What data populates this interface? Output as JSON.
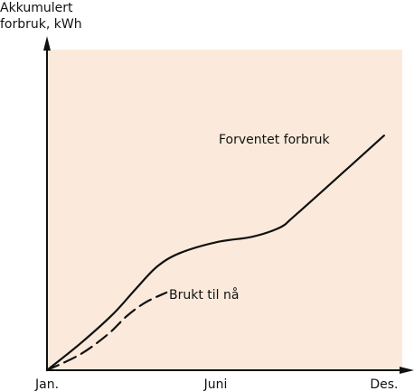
{
  "chart_data": {
    "type": "line",
    "ylabel": [
      "Akkumulert",
      "forbruk, kWh"
    ],
    "xlim": [
      0,
      12
    ],
    "ylim": [
      0,
      100
    ],
    "xticks": [
      {
        "value": 0,
        "label": "Jan."
      },
      {
        "value": 5.5,
        "label": "Juni"
      },
      {
        "value": 11,
        "label": "Des."
      }
    ],
    "series": [
      {
        "name": "Forventet forbruk",
        "color": "#111111",
        "dash": false,
        "x": [
          0,
          1.1,
          2.15,
          2.9,
          3.6,
          4.35,
          5.55,
          6.7,
          7.6,
          8.05,
          9.1,
          11
        ],
        "values": [
          0,
          8.2,
          17,
          24.7,
          31.5,
          35.6,
          38.9,
          40.5,
          43.3,
          46.6,
          55.3,
          71.2
        ]
      },
      {
        "name": "Brukt til nå",
        "color": "#111111",
        "dash": true,
        "x": [
          0,
          1.1,
          2,
          2.6,
          3.2,
          3.9
        ],
        "values": [
          0,
          4.9,
          11,
          16.4,
          20.5,
          23.6
        ]
      }
    ]
  }
}
